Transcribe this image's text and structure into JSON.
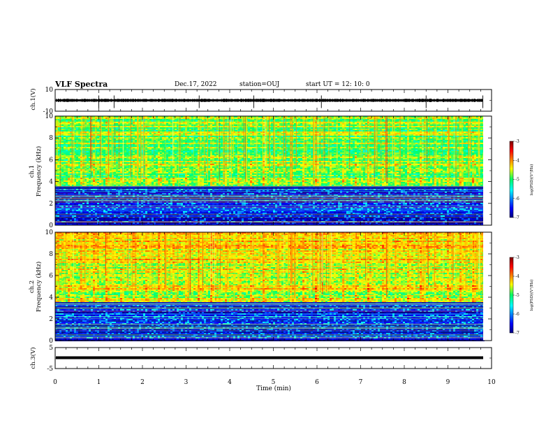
{
  "header": {
    "title": "VLF Spectra",
    "date": "Dec.17, 2022",
    "station": "station=OUJ",
    "start_time": "start UT =   12: 10: 0"
  },
  "chart_data": [
    {
      "type": "line",
      "panel": "ch1-waveform",
      "ylabel": "ch.1(V)",
      "ylim": [
        -10,
        10
      ],
      "yticks": [
        10,
        -10
      ],
      "xlim": [
        0,
        10
      ],
      "baseline": 0,
      "spike_times_min": [
        1.0,
        1.35,
        3.3,
        4.55,
        6.1,
        8.5,
        9.8
      ]
    },
    {
      "type": "heatmap",
      "panel": "ch1-spectrogram",
      "ylabel_channel": "ch.1",
      "ylabel": "Frequency (kHz)",
      "ylim": [
        0,
        10
      ],
      "yticks": [
        0,
        2,
        4,
        6,
        8,
        10
      ],
      "xlim": [
        0,
        10
      ],
      "colorbar": {
        "label": "log(PSD)(V²/Hz)",
        "range": [
          -7,
          -3
        ],
        "ticks": [
          -3,
          -4,
          -5,
          -6,
          -7
        ]
      }
    },
    {
      "type": "heatmap",
      "panel": "ch2-spectrogram",
      "ylabel_channel": "ch.2",
      "ylabel": "Frequency (kHz)",
      "ylim": [
        0,
        10
      ],
      "yticks": [
        0,
        2,
        4,
        6,
        8,
        10
      ],
      "xlim": [
        0,
        10
      ],
      "colorbar": {
        "label": "log(PSD)(V²/Hz)",
        "range": [
          -7,
          -3
        ],
        "ticks": [
          -3,
          -4,
          -5,
          -6,
          -7
        ]
      }
    },
    {
      "type": "line",
      "panel": "ch3-waveform",
      "ylabel": "ch.3(V)",
      "ylim": [
        -5,
        5
      ],
      "yticks": [
        5,
        -5
      ],
      "xlim": [
        0,
        10
      ],
      "baseline": 0
    }
  ],
  "xaxis": {
    "xlabel": "Time (min)",
    "xticks": [
      0,
      1,
      2,
      3,
      4,
      5,
      6,
      7,
      8,
      9,
      10
    ]
  }
}
